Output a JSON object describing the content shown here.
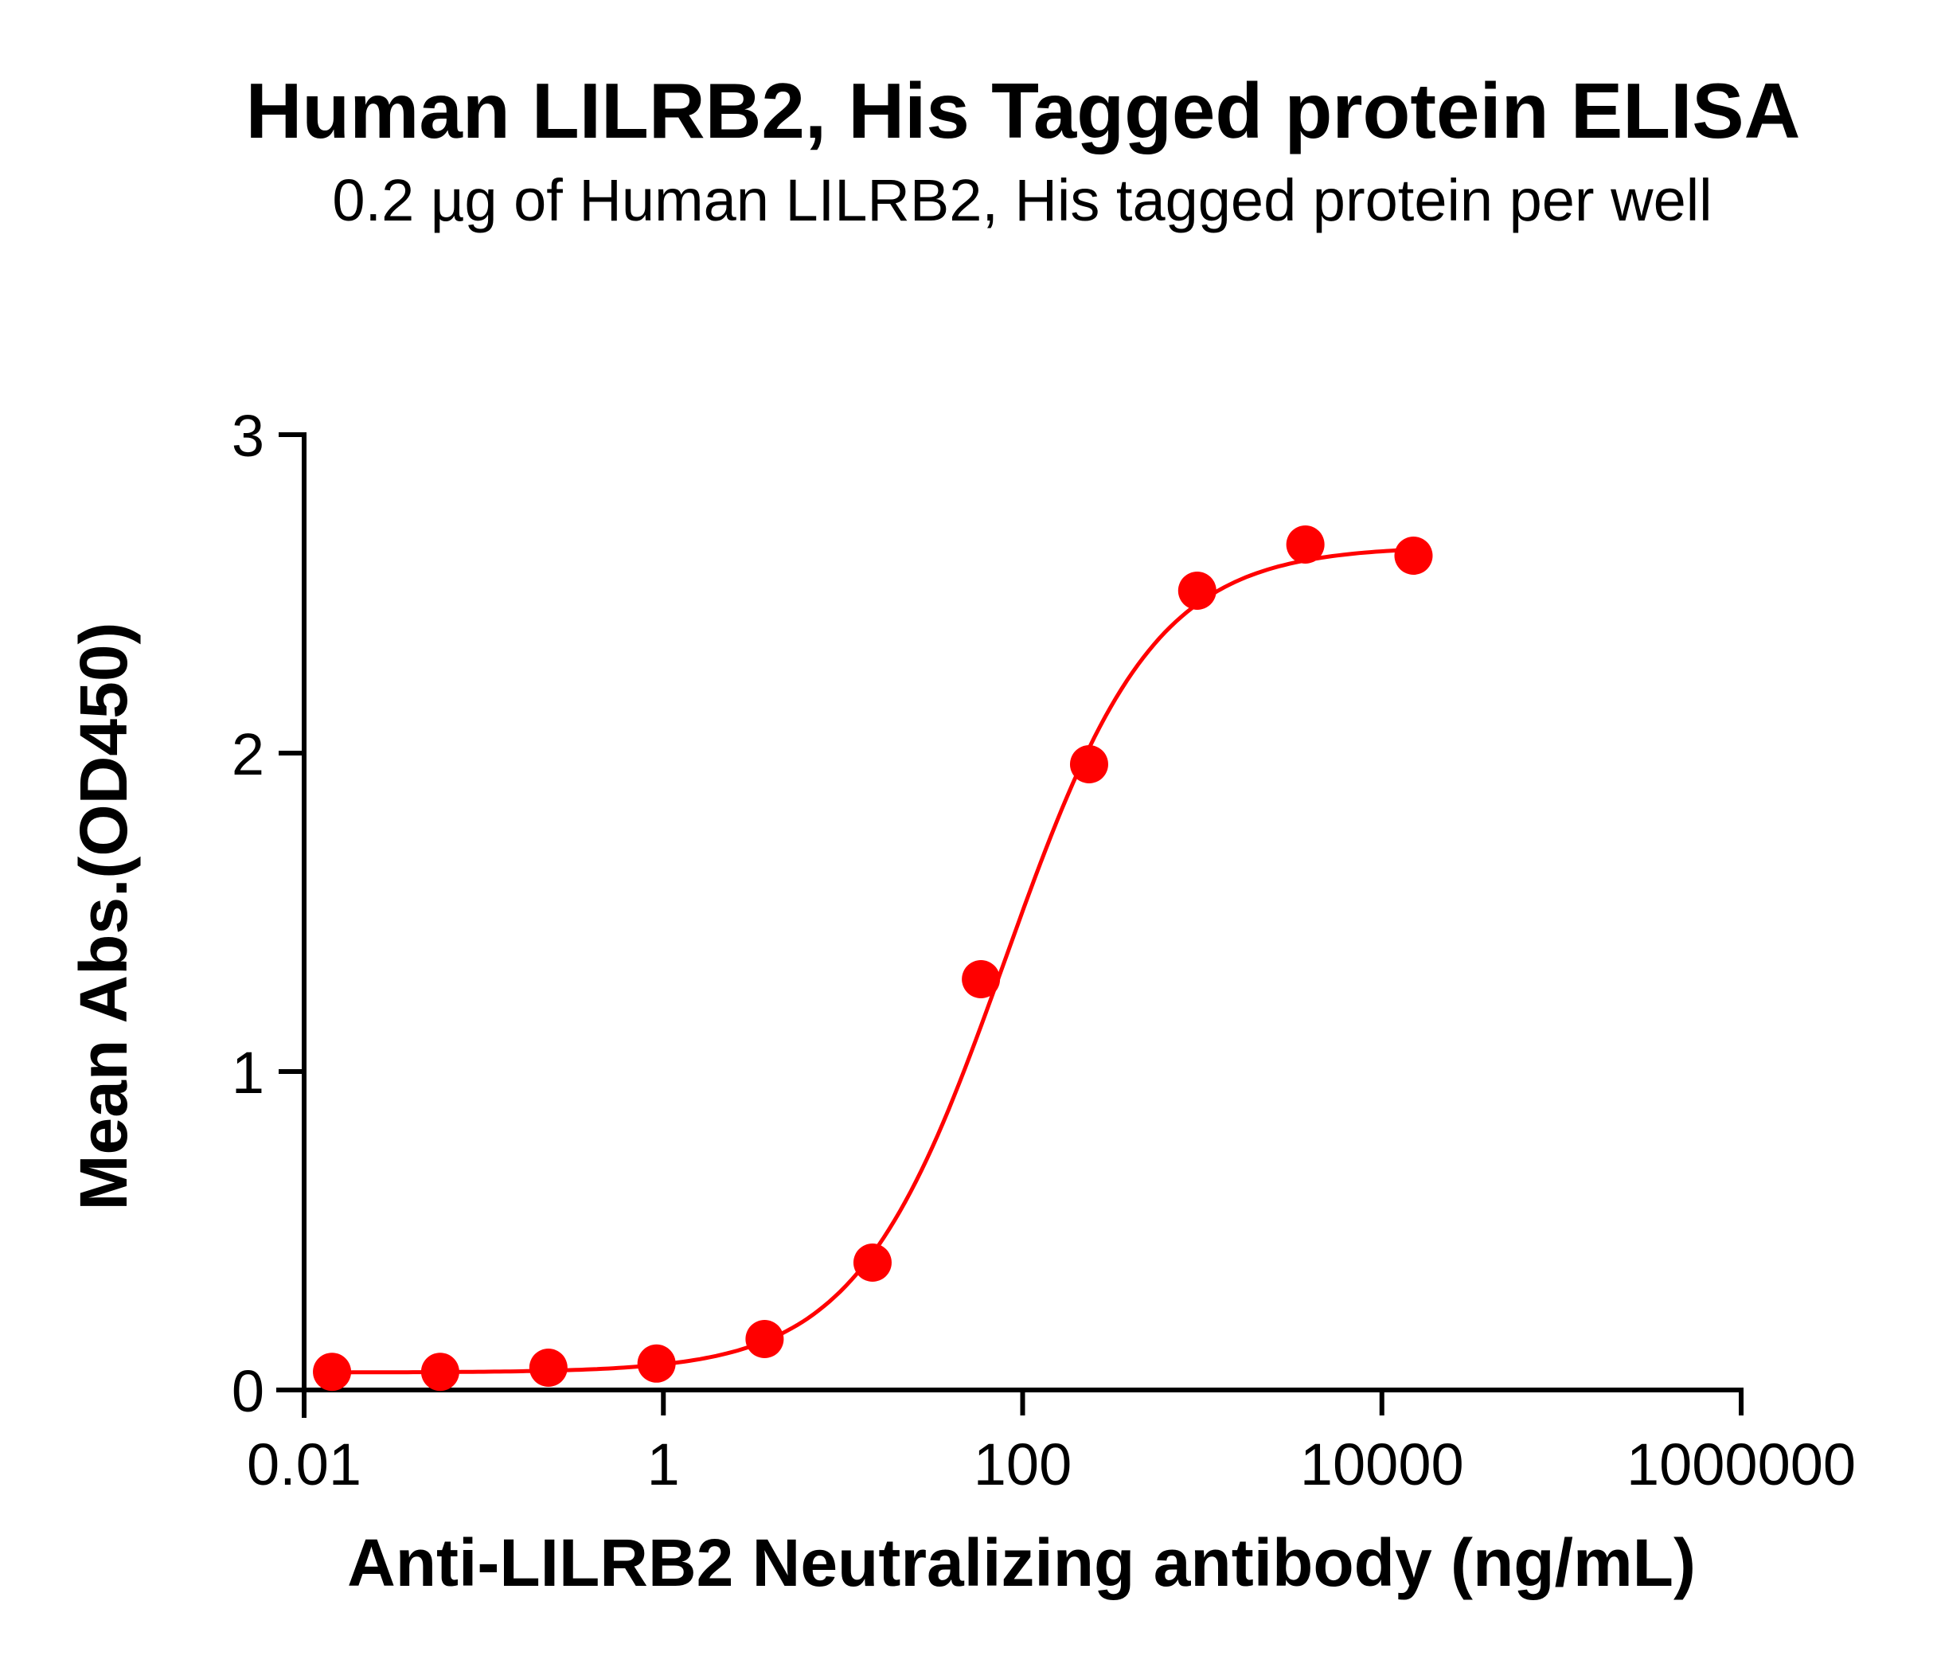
{
  "chart_data": {
    "type": "scatter",
    "title": "Human LILRB2, His Tagged protein ELISA",
    "subtitle": "0.2 µg of Human LILRB2, His tagged protein per well",
    "xlabel": "Anti-LILRB2 Neutralizing antibody (ng/mL)",
    "ylabel": "Mean Abs.(OD450)",
    "xscale": "log",
    "xlim": [
      0.01,
      1000000
    ],
    "ylim": [
      0,
      3
    ],
    "xticks": [
      0.01,
      1,
      100,
      10000,
      1000000
    ],
    "xtick_labels": [
      "0.01",
      "1",
      "100",
      "10000",
      "1000000"
    ],
    "yticks": [
      0,
      1,
      2,
      3
    ],
    "ytick_labels": [
      "0",
      "1",
      "2",
      "3"
    ],
    "grid": false,
    "legend": null,
    "series": [
      {
        "name": "Anti-LILRB2 Neutralizing antibody",
        "color": "#ff0000",
        "marker": "circle",
        "x": [
          0.0143,
          0.0572,
          0.229,
          0.916,
          3.66,
          14.6,
          58.6,
          234.4,
          937.5,
          3750,
          15000
        ],
        "y": [
          0.057,
          0.057,
          0.07,
          0.083,
          0.16,
          0.4,
          1.29,
          1.965,
          2.51,
          2.655,
          2.62
        ],
        "fit": {
          "type": "4PL sigmoid",
          "bottom": 0.055,
          "top": 2.65,
          "ec50": 80,
          "hill": 1.05
        }
      }
    ]
  },
  "colors": {
    "series": "#ff0000",
    "axis": "#000000",
    "background": "#ffffff"
  }
}
